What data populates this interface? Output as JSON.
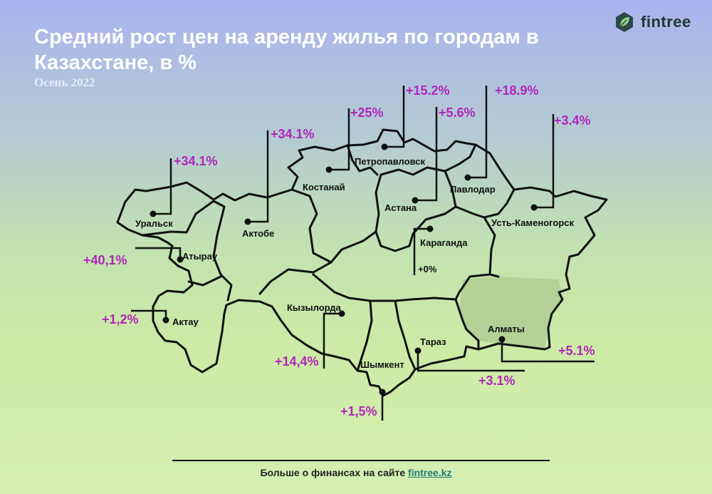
{
  "title": "Средний рост цен на аренду жилья по городам в Казахстане, в %",
  "subtitle": "Осень 2022",
  "logo": {
    "text": "fintree",
    "icon": "leaf-icon"
  },
  "footer": {
    "text": "Больше о финансах на сайте",
    "link": "fintree.kz"
  },
  "colors": {
    "value": "#b126b8",
    "map_outline": "#111111",
    "south_region": "#b4d097"
  },
  "cities": [
    {
      "name": "Уральск",
      "value": "+34.1%"
    },
    {
      "name": "Актобе",
      "value": "+34.1%"
    },
    {
      "name": "Костанай",
      "value": "+25%"
    },
    {
      "name": "Петропавловск",
      "value": "+15.2%"
    },
    {
      "name": "Астана",
      "value": "+5.6%"
    },
    {
      "name": "Павлодар",
      "value": "+18.9%"
    },
    {
      "name": "Усть-Каменогорск",
      "value": "+3.4%"
    },
    {
      "name": "Атырау",
      "value": "+40,1%"
    },
    {
      "name": "Караганда",
      "value": "+0%"
    },
    {
      "name": "Актау",
      "value": "+1,2%"
    },
    {
      "name": "Кызылорда",
      "value": "+14,4%"
    },
    {
      "name": "Алматы",
      "value": "+5.1%"
    },
    {
      "name": "Тараз",
      "value": "+3.1%"
    },
    {
      "name": "Шымкент",
      "value": "+1,5%"
    }
  ]
}
